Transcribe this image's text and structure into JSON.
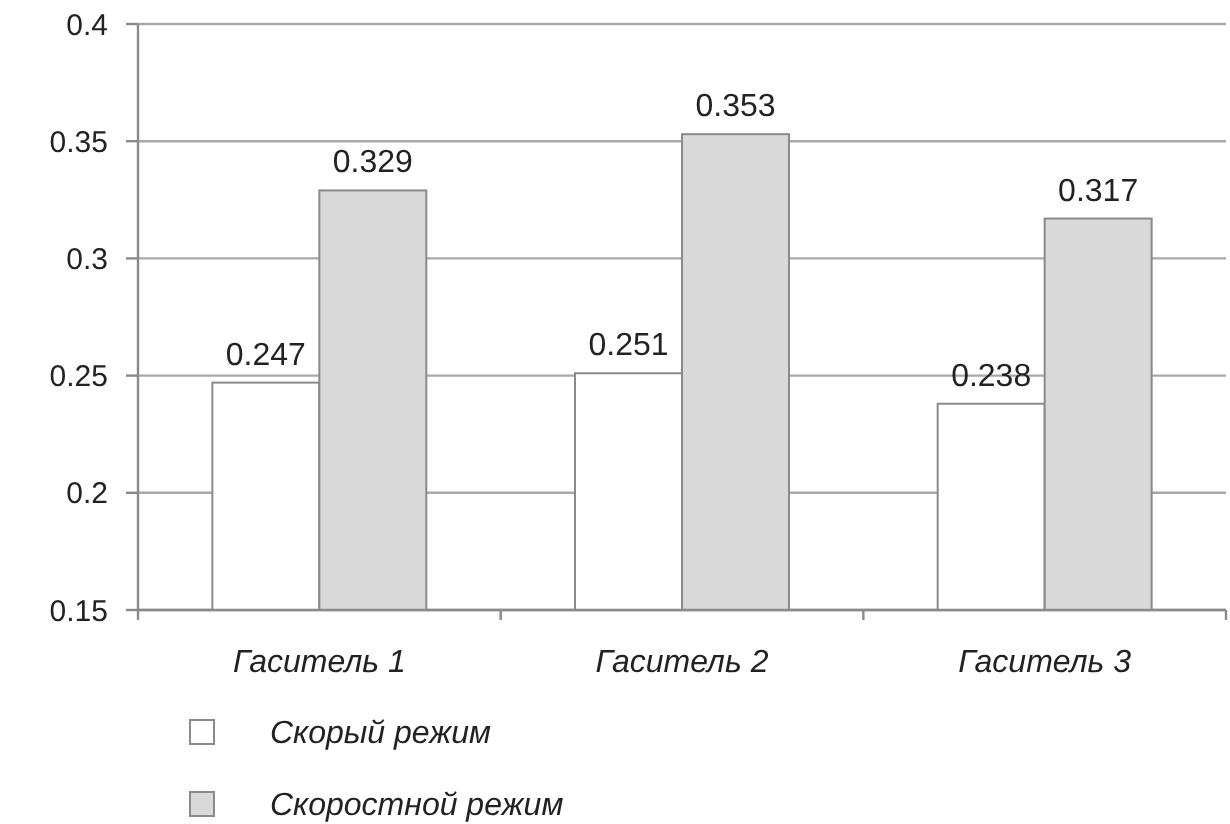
{
  "chart_data": {
    "type": "bar",
    "categories": [
      "Гаситель 1",
      "Гаситель 2",
      "Гаситель 3"
    ],
    "series": [
      {
        "name": "Скорый режим",
        "color": "#ffffff",
        "values": [
          0.247,
          0.251,
          0.238
        ]
      },
      {
        "name": "Скоростной режим",
        "color": "#d9d9d9",
        "values": [
          0.329,
          0.353,
          0.317
        ]
      }
    ],
    "ylim": [
      0.15,
      0.4
    ],
    "yticks": [
      0.15,
      0.2,
      0.25,
      0.3,
      0.35,
      0.4
    ],
    "grid": "y",
    "legend": "bottom left",
    "data_labels": true
  }
}
